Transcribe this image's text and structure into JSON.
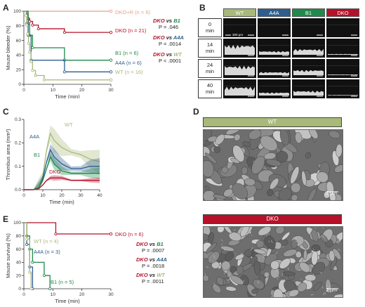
{
  "panels": {
    "a": "A",
    "b": "B",
    "c": "C",
    "d": "D",
    "e": "E"
  },
  "panel_a": {
    "ylabel": "Mouse bleeder (%)",
    "xlabel": "Time (min)",
    "yticks": [
      "0",
      "20",
      "40",
      "60",
      "80",
      "100"
    ],
    "xticks": [
      "0",
      "10",
      "20",
      "30"
    ],
    "legend": [
      {
        "label": "DKO+R (n = 6)",
        "color": "#e8a08a"
      },
      {
        "label": "DKO (n = 21)",
        "color": "#b5122a"
      },
      {
        "label": "B1 (n = 6)",
        "color": "#1f8a4c"
      },
      {
        "label": "A4A (n = 6)",
        "color": "#2e5e8e"
      },
      {
        "label": "WT (n = 16)",
        "color": "#a8b97a"
      }
    ],
    "stats": [
      {
        "a": "DKO",
        "vs": "vs",
        "b": "B1",
        "b_color": "#1f8a4c",
        "p": "P = .046"
      },
      {
        "a": "DKO",
        "vs": "vs",
        "b": "A4A",
        "b_color": "#2e5e8e",
        "p": "P = .0014"
      },
      {
        "a": "DKO",
        "vs": "vs",
        "b": "WT",
        "b_color": "#a8b97a",
        "p": "P < .0001"
      }
    ]
  },
  "chart_data": [
    {
      "type": "line",
      "panel": "A",
      "xlabel": "Time (min)",
      "ylabel": "Mouse bleeder (%)",
      "xlim": [
        0,
        30
      ],
      "ylim": [
        0,
        100
      ],
      "series": [
        {
          "name": "DKO+R (n = 6)",
          "color": "#e8a08a",
          "x": [
            0,
            30
          ],
          "y": [
            100,
            100
          ]
        },
        {
          "name": "DKO (n = 21)",
          "color": "#b5122a",
          "x": [
            0,
            1,
            1.5,
            2,
            3,
            5,
            14,
            30
          ],
          "y": [
            100,
            95,
            90,
            86,
            81,
            76,
            71,
            71
          ]
        },
        {
          "name": "B1 (n = 6)",
          "color": "#1f8a4c",
          "x": [
            0,
            1.5,
            2,
            3,
            14,
            30
          ],
          "y": [
            100,
            83,
            67,
            50,
            33,
            33
          ]
        },
        {
          "name": "A4A (n = 6)",
          "color": "#2e5e8e",
          "x": [
            0,
            1,
            1.5,
            2.5,
            14,
            30
          ],
          "y": [
            100,
            83,
            67,
            33,
            17,
            17
          ]
        },
        {
          "name": "WT (n = 16)",
          "color": "#a8b97a",
          "x": [
            0,
            0.8,
            1,
            1.3,
            1.6,
            2,
            2.5,
            3,
            4,
            7,
            30
          ],
          "y": [
            100,
            94,
            81,
            69,
            56,
            44,
            31,
            19,
            12,
            6,
            6
          ]
        }
      ]
    },
    {
      "type": "area",
      "panel": "C",
      "xlabel": "Time (min)",
      "ylabel": "Thrombus area (mm²)",
      "xlim": [
        0,
        40
      ],
      "ylim": [
        0,
        0.3
      ],
      "series": [
        {
          "name": "WT",
          "color": "#a8b97a",
          "x": [
            0,
            5,
            8,
            10,
            12,
            14,
            16,
            20,
            25,
            30,
            35,
            40
          ],
          "y": [
            0,
            0,
            0.01,
            0.06,
            0.17,
            0.24,
            0.21,
            0.18,
            0.16,
            0.15,
            0.13,
            0.12
          ]
        },
        {
          "name": "A4A",
          "color": "#2e5e8e",
          "x": [
            0,
            5,
            8,
            10,
            12,
            14,
            16,
            20,
            25,
            30,
            35,
            40
          ],
          "y": [
            0,
            0,
            0.01,
            0.05,
            0.12,
            0.17,
            0.14,
            0.11,
            0.09,
            0.09,
            0.1,
            0.1
          ]
        },
        {
          "name": "B1",
          "color": "#1f8a4c",
          "x": [
            0,
            5,
            8,
            10,
            12,
            14,
            16,
            20,
            25,
            30,
            35,
            40
          ],
          "y": [
            0,
            0,
            0.01,
            0.04,
            0.09,
            0.14,
            0.11,
            0.08,
            0.07,
            0.07,
            0.07,
            0.07
          ]
        },
        {
          "name": "DKO",
          "color": "#b5122a",
          "x": [
            0,
            5,
            8,
            10,
            12,
            14,
            16,
            20,
            25,
            30,
            35,
            40
          ],
          "y": [
            0,
            0,
            0.005,
            0.02,
            0.04,
            0.05,
            0.05,
            0.05,
            0.04,
            0.04,
            0.04,
            0.04
          ]
        }
      ]
    },
    {
      "type": "line",
      "panel": "E",
      "xlabel": "Time (min)",
      "ylabel": "Mouse survival (%)",
      "xlim": [
        0,
        30
      ],
      "ylim": [
        0,
        100
      ],
      "series": [
        {
          "name": "DKO (n = 6)",
          "color": "#b5122a",
          "x": [
            0,
            11,
            11,
            30
          ],
          "y": [
            100,
            100,
            83,
            83
          ]
        },
        {
          "name": "B1 (n = 5)",
          "color": "#1f8a4c",
          "x": [
            0,
            1,
            1,
            2,
            2,
            3,
            3,
            7,
            7,
            9,
            9
          ],
          "y": [
            100,
            100,
            80,
            80,
            60,
            60,
            40,
            40,
            20,
            20,
            0
          ]
        },
        {
          "name": "A4A (n = 3)",
          "color": "#2e5e8e",
          "x": [
            0,
            1,
            1,
            2,
            2,
            3,
            3
          ],
          "y": [
            100,
            100,
            67,
            67,
            33,
            33,
            0
          ]
        },
        {
          "name": "WT (n = 4)",
          "color": "#a8b97a",
          "x": [
            0,
            1,
            1,
            2,
            2,
            2.5,
            2.5
          ],
          "y": [
            100,
            100,
            75,
            75,
            25,
            25,
            0
          ]
        }
      ]
    }
  ],
  "panel_b": {
    "columns": [
      {
        "label": "WT",
        "color": "#a8b97a"
      },
      {
        "label": "A4A",
        "color": "#2e5e8e"
      },
      {
        "label": "B1",
        "color": "#1f8a4c"
      },
      {
        "label": "DKO",
        "color": "#b5122a"
      }
    ],
    "rows": [
      "0 min",
      "14 min",
      "24 min",
      "40 min"
    ],
    "scale_label": "300 µm"
  },
  "panel_c": {
    "ylabel": "Thrombus area (mm²)",
    "xlabel": "Time (min)",
    "yticks": [
      "0.0",
      "0.1",
      "0.2",
      "0.3"
    ],
    "xticks": [
      "0",
      "10",
      "20",
      "30",
      "40"
    ],
    "labels": [
      {
        "text": "WT",
        "color": "#a8b97a"
      },
      {
        "text": "A4A",
        "color": "#2e5e8e"
      },
      {
        "text": "B1",
        "color": "#1f8a4c"
      },
      {
        "text": "DKO",
        "color": "#b5122a"
      }
    ]
  },
  "panel_d": {
    "wt_label": "WT",
    "wt_color": "#a8b97a",
    "dko_label": "DKO",
    "dko_color": "#b5122a",
    "scale": "2 µm"
  },
  "panel_e": {
    "ylabel": "Mouse survival (%)",
    "xlabel": "Time (min)",
    "yticks": [
      "0",
      "20",
      "40",
      "60",
      "80",
      "100"
    ],
    "xticks": [
      "0",
      "10",
      "20",
      "30"
    ],
    "legend": [
      {
        "label": "DKO (n = 6)",
        "color": "#b5122a"
      },
      {
        "label": "WT (n = 4)",
        "color": "#a8b97a"
      },
      {
        "label": "A4A (n = 3)",
        "color": "#2e5e8e"
      },
      {
        "label": "B1 (n = 5)",
        "color": "#1f8a4c"
      }
    ],
    "stats": [
      {
        "a": "DKO",
        "vs": "vs",
        "b": "B1",
        "b_color": "#1f8a4c",
        "p": "P = .0007"
      },
      {
        "a": "DKO",
        "vs": "vs",
        "b": "A4A",
        "b_color": "#2e5e8e",
        "p": "P = .0018"
      },
      {
        "a": "DKO",
        "vs": "vs",
        "b": "WT",
        "b_color": "#a8b97a",
        "p": "P = .0011"
      }
    ]
  }
}
